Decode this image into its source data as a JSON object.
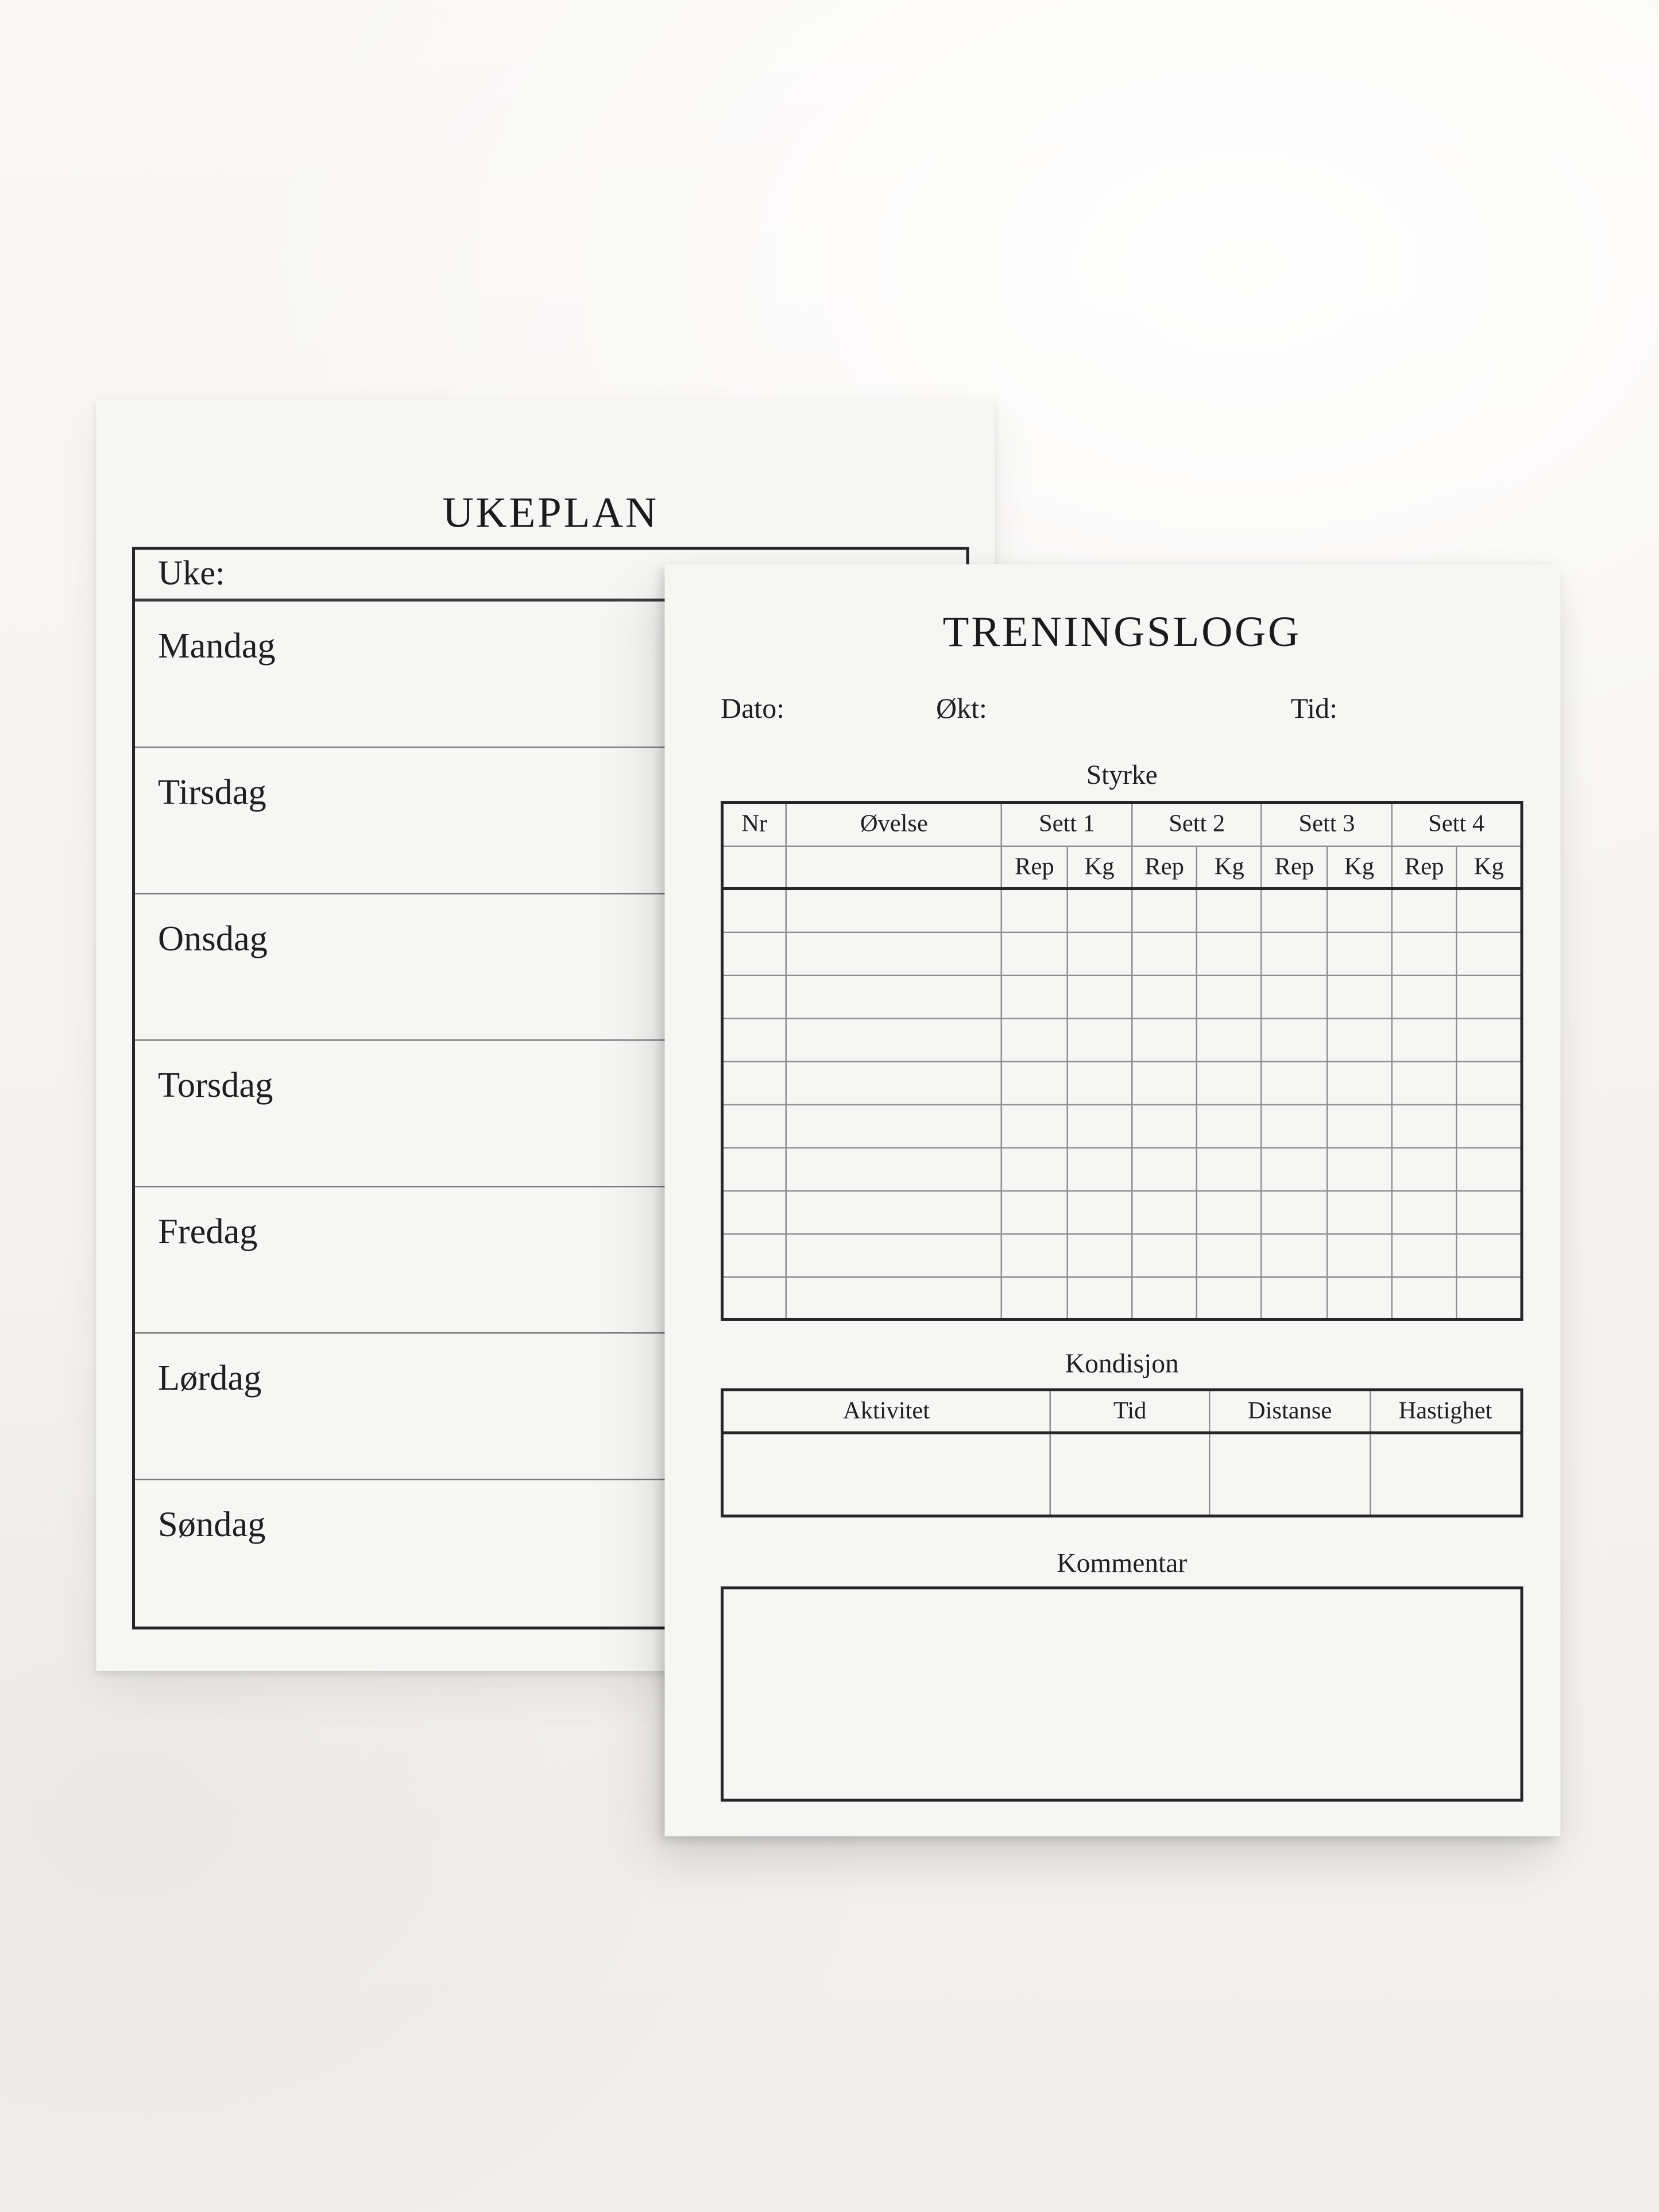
{
  "ukeplan": {
    "title": "UKEPLAN",
    "week_row_label": "Uke:",
    "days": [
      "Mandag",
      "Tirsdag",
      "Onsdag",
      "Torsdag",
      "Fredag",
      "Lørdag",
      "Søndag"
    ]
  },
  "treningslogg": {
    "title": "TRENINGSLOGG",
    "meta": {
      "date_label": "Dato:",
      "session_label": "Økt:",
      "time_label": "Tid:"
    },
    "strength": {
      "heading": "Styrke",
      "nr_label": "Nr",
      "exercise_label": "Øvelse",
      "set_labels": [
        "Sett 1",
        "Sett 2",
        "Sett 3",
        "Sett 4"
      ],
      "sub_labels": [
        "Rep",
        "Kg"
      ],
      "empty_row_count": 10
    },
    "cardio": {
      "heading": "Kondisjon",
      "column_labels": [
        "Aktivitet",
        "Tid",
        "Distanse",
        "Hastighet"
      ],
      "empty_row_count": 1
    },
    "comment": {
      "heading": "Kommentar"
    }
  },
  "colors": {
    "ink": "#1f1f1f",
    "paper": "#f6f6f4",
    "wall": "#f7f5f2",
    "line_thin": "#8f8f8f",
    "line_thick": "#262626"
  }
}
